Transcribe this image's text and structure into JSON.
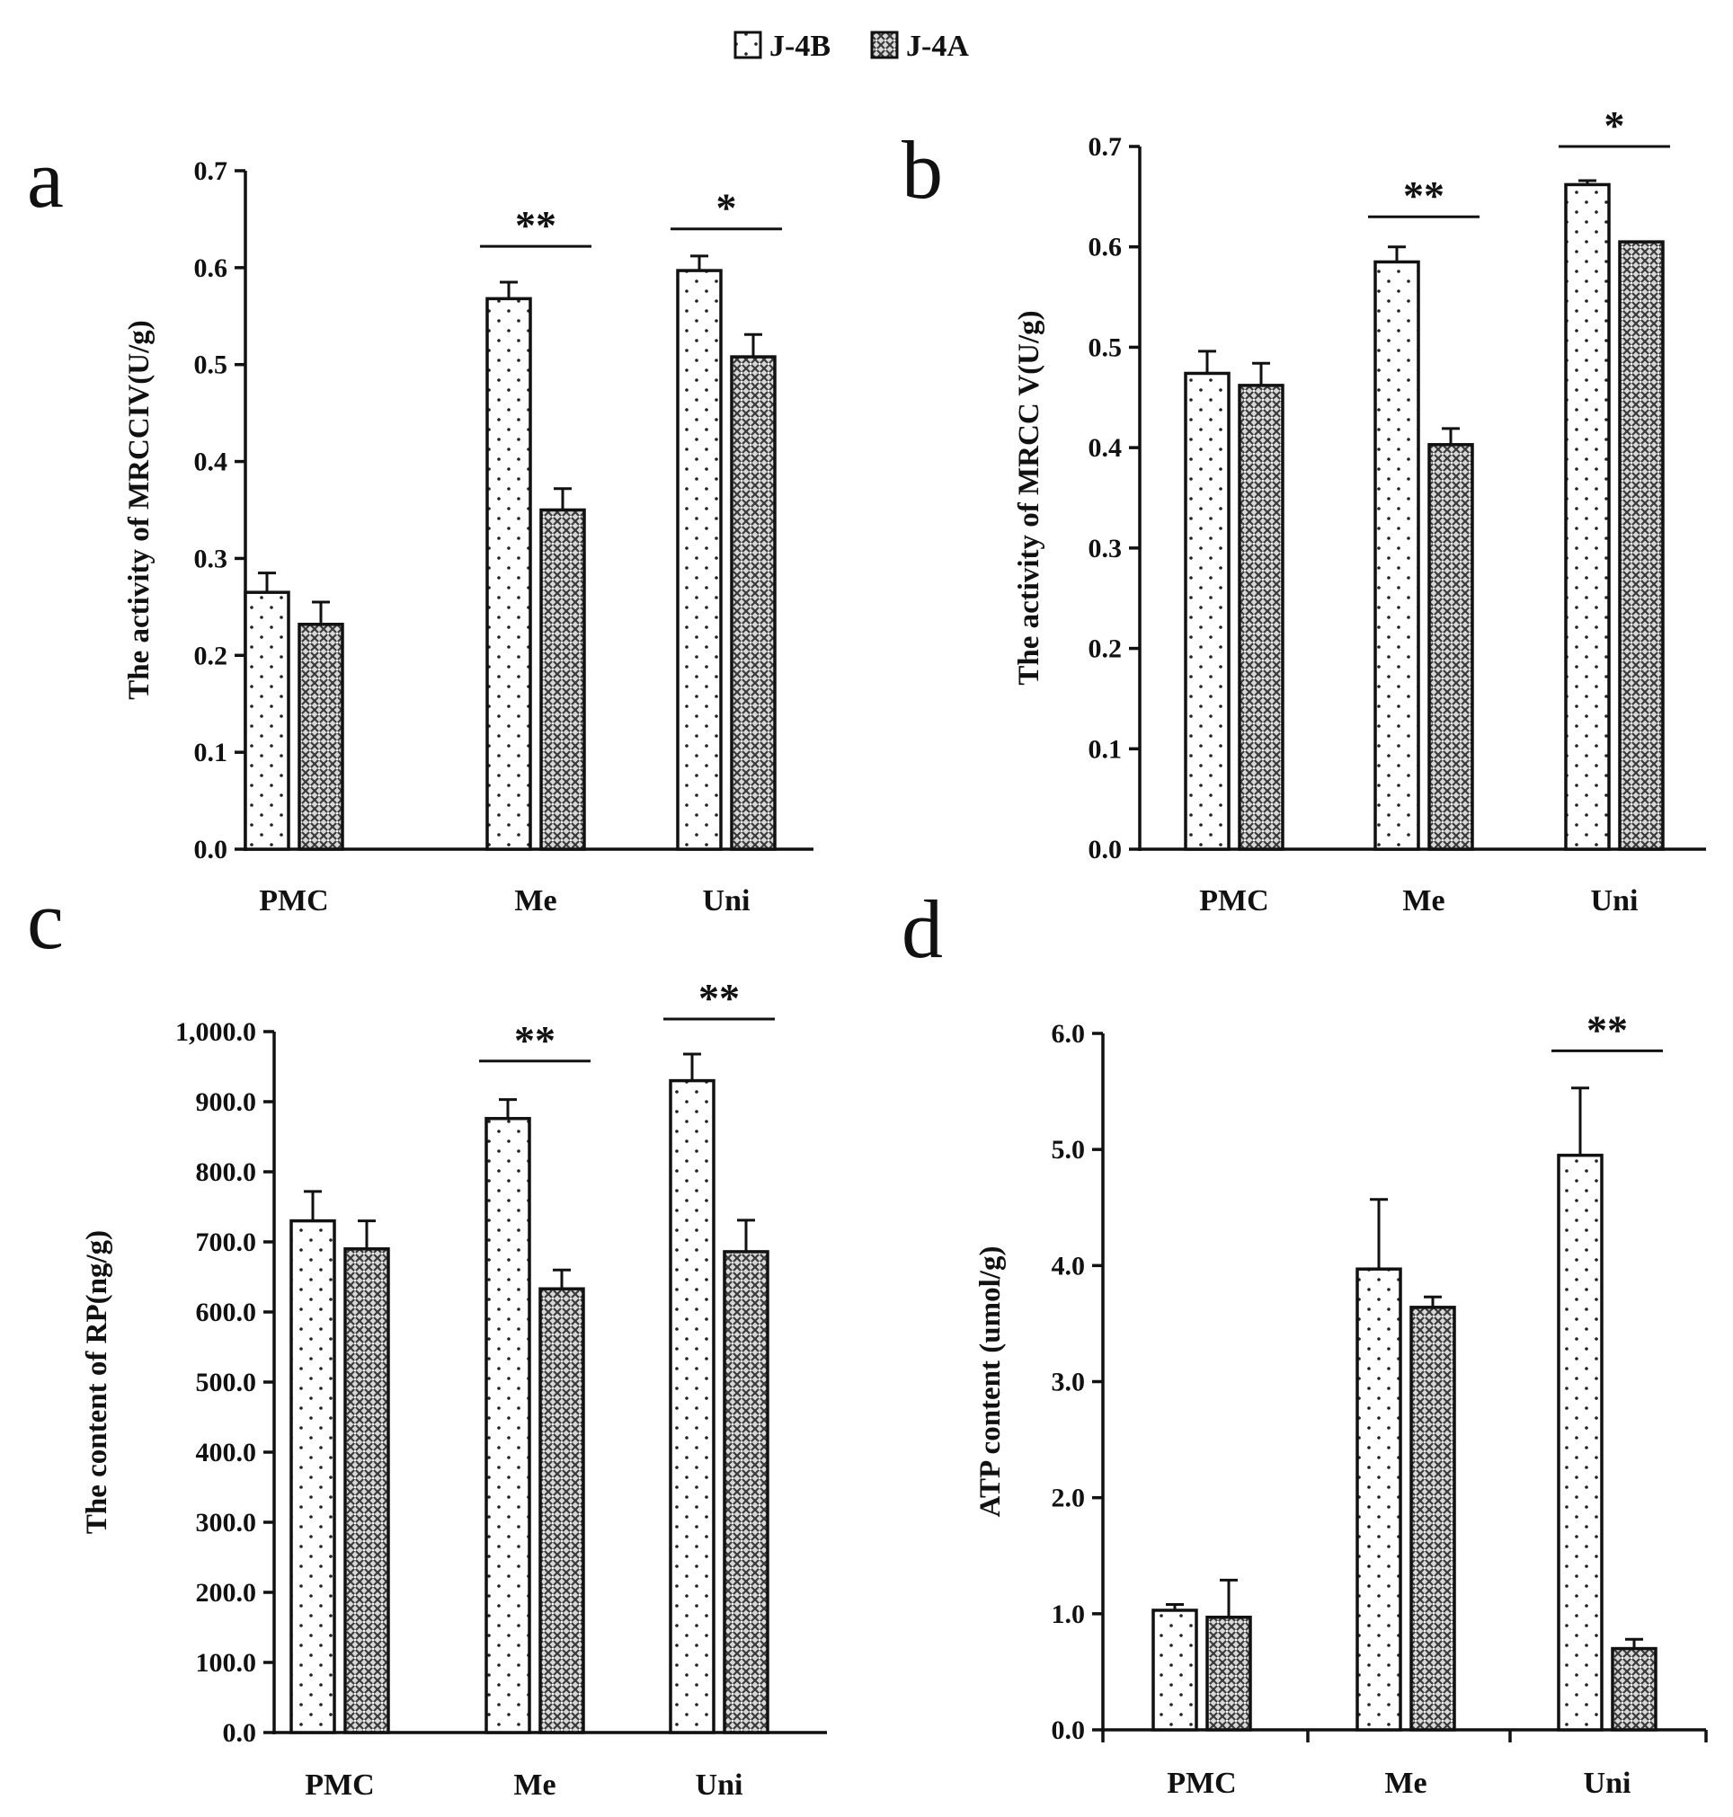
{
  "legend": {
    "items": [
      {
        "name": "J-4B",
        "pattern": "dots"
      },
      {
        "name": "J-4A",
        "pattern": "crosshatch"
      }
    ]
  },
  "chart_data": [
    {
      "panel": "a",
      "type": "bar",
      "categories": [
        "PMC",
        "Me",
        "Uni"
      ],
      "series": [
        {
          "name": "J-4B",
          "values": [
            0.265,
            0.568,
            0.597
          ],
          "errors": [
            0.02,
            0.017,
            0.015
          ]
        },
        {
          "name": "J-4A",
          "values": [
            0.232,
            0.35,
            0.508
          ],
          "errors": [
            0.023,
            0.022,
            0.023
          ]
        }
      ],
      "ylabel": "The activity of MRCCIV(U/g)",
      "ylim": [
        0,
        0.7
      ],
      "yticks": [
        0.0,
        0.1,
        0.2,
        0.3,
        0.4,
        0.5,
        0.6,
        0.7
      ],
      "ytick_labels": [
        "0.0",
        "0.1",
        "0.2",
        "0.3",
        "0.4",
        "0.5",
        "0.6",
        "0.7"
      ],
      "significance": [
        {
          "category": "Me",
          "label": "**",
          "y": 0.622
        },
        {
          "category": "Uni",
          "label": "*",
          "y": 0.64
        }
      ]
    },
    {
      "panel": "b",
      "type": "bar",
      "categories": [
        "PMC",
        "Me",
        "Uni"
      ],
      "series": [
        {
          "name": "J-4B",
          "values": [
            0.474,
            0.585,
            0.662
          ],
          "errors": [
            0.022,
            0.015,
            0.004
          ]
        },
        {
          "name": "J-4A",
          "values": [
            0.462,
            0.403,
            0.605
          ],
          "errors": [
            0.022,
            0.016,
            0.0
          ]
        }
      ],
      "ylabel": "The activity of MRCC V(U/g)",
      "ylim": [
        0,
        0.7
      ],
      "yticks": [
        0.0,
        0.1,
        0.2,
        0.3,
        0.4,
        0.5,
        0.6,
        0.7
      ],
      "ytick_labels": [
        "0.0",
        "0.1",
        "0.2",
        "0.3",
        "0.4",
        "0.5",
        "0.6",
        "0.7"
      ],
      "significance": [
        {
          "category": "Me",
          "label": "**",
          "y": 0.63
        },
        {
          "category": "Uni",
          "label": "*",
          "y": 0.7
        }
      ]
    },
    {
      "panel": "c",
      "type": "bar",
      "categories": [
        "PMC",
        "Me",
        "Uni"
      ],
      "series": [
        {
          "name": "J-4B",
          "values": [
            730,
            876,
            930
          ],
          "errors": [
            42,
            27,
            38
          ]
        },
        {
          "name": "J-4A",
          "values": [
            690,
            633,
            686
          ],
          "errors": [
            40,
            27,
            45
          ]
        }
      ],
      "ylabel": "The content  of RP(ng/g)",
      "ylim": [
        0,
        1000
      ],
      "yticks": [
        0,
        100,
        200,
        300,
        400,
        500,
        600,
        700,
        800,
        900,
        1000
      ],
      "ytick_labels": [
        "0.0",
        "100.0",
        "200.0",
        "300.0",
        "400.0",
        "500.0",
        "600.0",
        "700.0",
        "800.0",
        "900.0",
        "1,000.0"
      ],
      "significance": [
        {
          "category": "Me",
          "label": "**",
          "y": 958
        },
        {
          "category": "Uni",
          "label": "**",
          "y": 1018
        }
      ]
    },
    {
      "panel": "d",
      "type": "bar",
      "categories": [
        "PMC",
        "Me",
        "Uni"
      ],
      "series": [
        {
          "name": "J-4B",
          "values": [
            1.03,
            3.97,
            4.95
          ],
          "errors": [
            0.05,
            0.6,
            0.58
          ]
        },
        {
          "name": "J-4A",
          "values": [
            0.97,
            3.64,
            0.7
          ],
          "errors": [
            0.32,
            0.09,
            0.08
          ]
        }
      ],
      "ylabel": "ATP content (umol/g)",
      "ylim": [
        0,
        6.0
      ],
      "yticks": [
        0.0,
        1.0,
        2.0,
        3.0,
        4.0,
        5.0,
        6.0
      ],
      "ytick_labels": [
        "0.0",
        "1.0",
        "2.0",
        "3.0",
        "4.0",
        "5.0",
        "6.0"
      ],
      "significance": [
        {
          "category": "Uni",
          "label": "**",
          "y": 5.85
        }
      ]
    }
  ]
}
